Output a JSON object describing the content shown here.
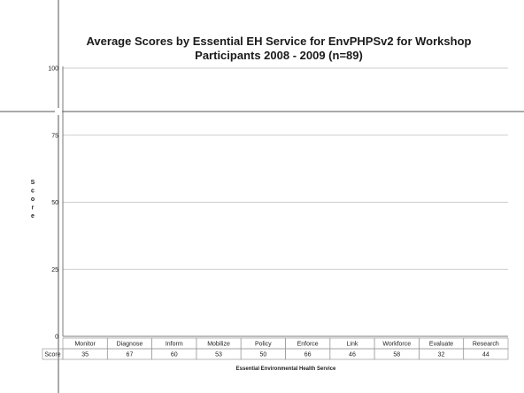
{
  "chart_data": {
    "type": "table",
    "title_lines": [
      "Average Scores by Essential EH Service for EnvPHPSv2 for Workshop",
      "Participants 2008 - 2009 (n=89)"
    ],
    "ylabel": "Score",
    "xlabel": "Essential Environmental Health Service",
    "ylim": [
      0,
      100
    ],
    "yticks": [
      0,
      25,
      50,
      75,
      100
    ],
    "grid": true,
    "table_row_label": "Score",
    "categories": [
      "Monitor",
      "Diagnose",
      "Inform",
      "Mobilize",
      "Policy",
      "Enforce",
      "Link",
      "Workforce",
      "Evaluate",
      "Research"
    ],
    "series": [
      {
        "name": "Score",
        "values": [
          35,
          67,
          60,
          53,
          50,
          66,
          46,
          58,
          32,
          44
        ]
      }
    ]
  }
}
